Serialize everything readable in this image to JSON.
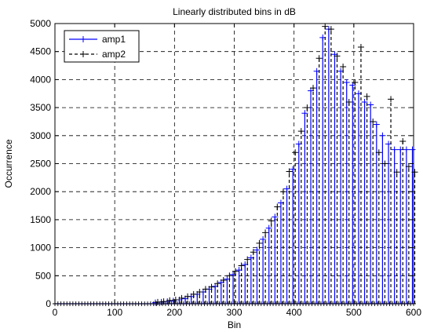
{
  "chart_data": {
    "type": "line",
    "style": "stem",
    "title": "Linearly distributed bins in dB",
    "xlabel": "Bin",
    "ylabel": "Occurrence",
    "xlim": [
      0,
      600
    ],
    "ylim": [
      0,
      5000
    ],
    "xticks": [
      0,
      100,
      200,
      300,
      400,
      500,
      600
    ],
    "yticks": [
      0,
      500,
      1000,
      1500,
      2000,
      2500,
      3000,
      3500,
      4000,
      4500,
      5000
    ],
    "grid": true,
    "grid_style": "dashed",
    "legend": "top-left",
    "series": [
      {
        "name": "amp1",
        "color": "#0000ff",
        "line_style": "solid",
        "marker": "+",
        "x": [
          170,
          180,
          190,
          200,
          210,
          220,
          230,
          240,
          250,
          260,
          270,
          280,
          290,
          300,
          310,
          320,
          330,
          340,
          350,
          360,
          370,
          380,
          390,
          400,
          410,
          420,
          430,
          440,
          450,
          460,
          470,
          480,
          490,
          500,
          510,
          520,
          530,
          540,
          550,
          560,
          570,
          580,
          590,
          600
        ],
        "values": [
          20,
          30,
          40,
          50,
          70,
          90,
          130,
          170,
          210,
          260,
          310,
          380,
          440,
          520,
          600,
          700,
          820,
          960,
          1150,
          1350,
          1550,
          1800,
          2050,
          2400,
          2850,
          3400,
          3800,
          4150,
          4750,
          4900,
          4450,
          4150,
          3950,
          3900,
          3750,
          3600,
          3550,
          3200,
          3000,
          2850,
          2750,
          2750,
          2750,
          2750
        ]
      },
      {
        "name": "amp2",
        "color": "#000000",
        "line_style": "dashed",
        "marker": "+",
        "x": [
          170,
          180,
          190,
          200,
          210,
          220,
          230,
          240,
          250,
          260,
          270,
          280,
          290,
          300,
          310,
          320,
          330,
          340,
          350,
          360,
          370,
          380,
          390,
          400,
          410,
          420,
          430,
          440,
          450,
          460,
          470,
          480,
          490,
          500,
          510,
          520,
          530,
          540,
          550,
          560,
          570,
          580,
          590,
          600
        ],
        "values": [
          30,
          40,
          60,
          70,
          100,
          130,
          170,
          210,
          260,
          300,
          360,
          420,
          500,
          580,
          680,
          790,
          920,
          1080,
          1270,
          1480,
          1730,
          2000,
          2360,
          2700,
          3080,
          3500,
          3850,
          4380,
          4950,
          4900,
          4420,
          4230,
          3600,
          3950,
          4580,
          3700,
          3250,
          2700,
          2500,
          3650,
          2350,
          2900,
          2450,
          2350
        ]
      }
    ]
  }
}
